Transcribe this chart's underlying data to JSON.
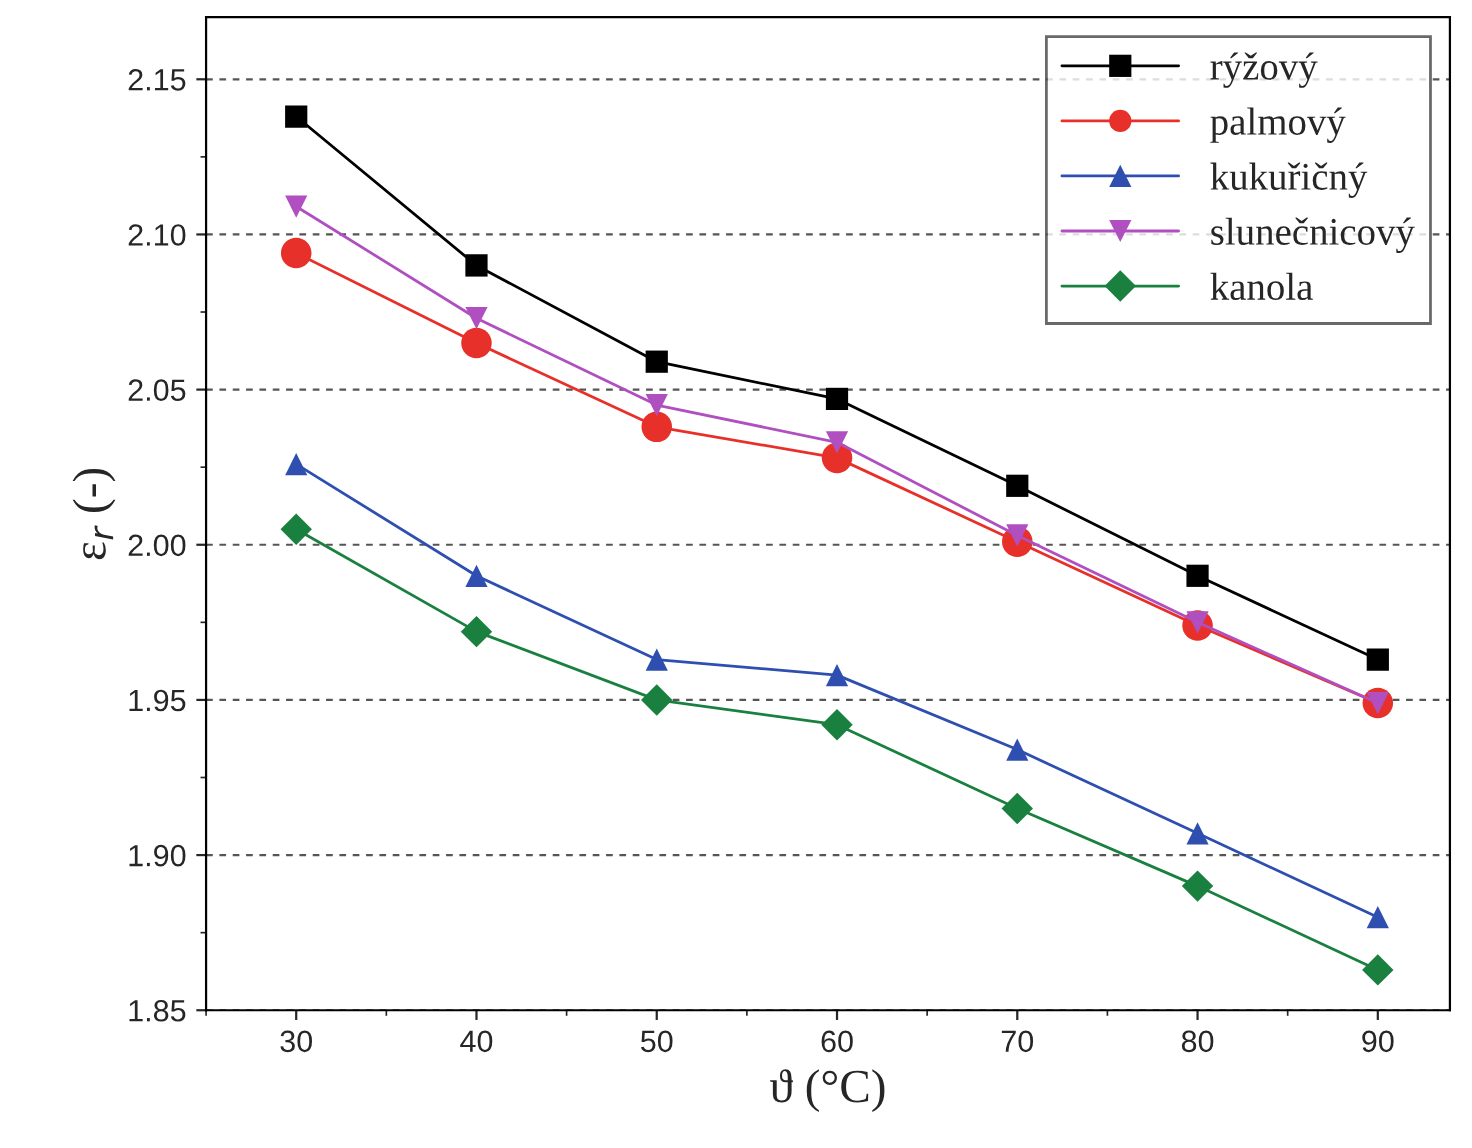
{
  "chart_data": {
    "type": "line",
    "xlabel": "ϑ (°C)",
    "ylabel": "ε$_{r}$ (-)",
    "x": [
      30,
      40,
      50,
      60,
      70,
      80,
      90
    ],
    "series": [
      {
        "name": "rýžový",
        "color": "#000000",
        "marker": "square",
        "values": [
          2.138,
          2.09,
          2.059,
          2.047,
          2.019,
          1.99,
          1.963
        ]
      },
      {
        "name": "palmový",
        "color": "#e8302a",
        "marker": "circle",
        "values": [
          2.094,
          2.065,
          2.038,
          2.028,
          2.001,
          1.974,
          1.949
        ]
      },
      {
        "name": "kukuřičný",
        "color": "#2e4fb0",
        "marker": "triangle",
        "values": [
          2.026,
          1.99,
          1.963,
          1.958,
          1.934,
          1.907,
          1.88
        ]
      },
      {
        "name": "slunečnicový",
        "color": "#b04fc0",
        "marker": "triangle_down",
        "values": [
          2.109,
          2.073,
          2.045,
          2.033,
          2.003,
          1.975,
          1.949
        ]
      },
      {
        "name": "kanola",
        "color": "#1a8040",
        "marker": "diamond",
        "values": [
          2.005,
          1.972,
          1.95,
          1.942,
          1.915,
          1.89,
          1.863
        ]
      }
    ],
    "xlim": [
      25,
      94
    ],
    "xticks": [
      30,
      40,
      50,
      60,
      70,
      80,
      90
    ],
    "ylim": [
      1.85,
      2.17
    ],
    "yticks": [
      {
        "value": 1.85,
        "label": "1.85"
      },
      {
        "value": 1.9,
        "label": "1.90"
      },
      {
        "value": 1.95,
        "label": "1.95"
      },
      {
        "value": 2.0,
        "label": "2.00"
      },
      {
        "value": 2.05,
        "label": "2.05"
      },
      {
        "value": 2.1,
        "label": "2.10"
      },
      {
        "value": 2.15,
        "label": "2.15"
      }
    ],
    "grid": "y",
    "legend": "top right",
    "line_style": "solid"
  }
}
